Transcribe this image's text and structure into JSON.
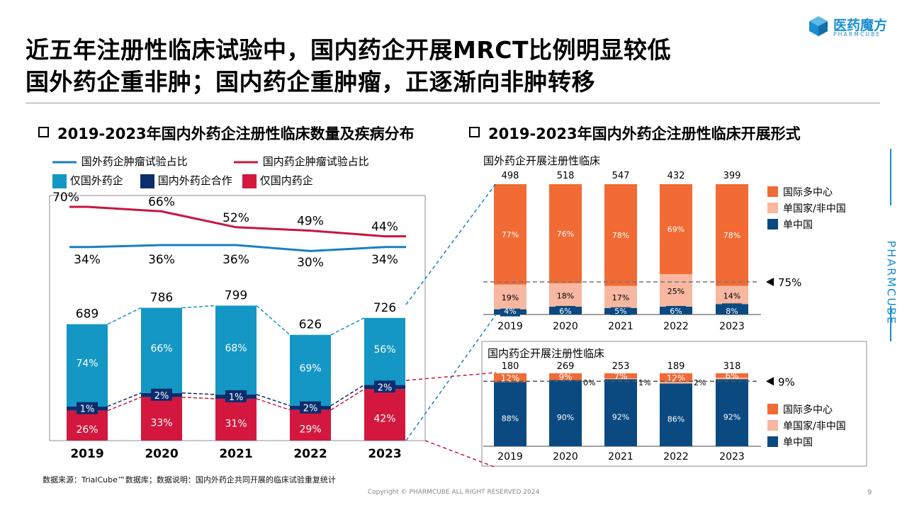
{
  "logo": {
    "cn": "医药魔方",
    "en": "PHARMCUBE"
  },
  "title": {
    "line1": "近五年注册性临床试验中，国内药企开展MRCT比例明显较低",
    "line2": "国外药企重非肿；国内药企重肿瘤，正逐渐向非肿转移"
  },
  "left_section": {
    "heading": "2019-2023年国内外药企注册性临床数量及疾病分布"
  },
  "right_section": {
    "heading": "2019-2023年国内外药企注册性临床开展形式"
  },
  "left_legend": {
    "line1": "国外药企肿瘤试验占比",
    "line2": "国内药企肿瘤试验占比",
    "bar1": "仅国外药企",
    "bar2": "国内外药企合作",
    "bar3": "仅国内药企"
  },
  "right_legend": {
    "a": "国际多中心",
    "b": "单国家/非中国",
    "c": "单中国"
  },
  "side_brand": "PHARMCUBE",
  "footnote": "数据来源：TrialCube™数据库；数据说明：国内外药企共同开展的临床试验重复统计",
  "copyright": "Copyright © PHARMCUBE ALL RIGHT RESERVED 2024",
  "page_number": "9",
  "colors": {
    "foreign": "#1497c4",
    "joint": "#0b2d6e",
    "domestic": "#d3173e",
    "mrct": "#f26a34",
    "single_nonchina": "#f7b7a0",
    "single_china": "#0b4a80",
    "line_foreign": "#1a7fc1",
    "line_domestic": "#c8163e"
  },
  "chart_data": [
    {
      "type": "bar",
      "title": "",
      "categories": [
        "2019",
        "2020",
        "2021",
        "2022",
        "2023"
      ],
      "totals": [
        "689",
        "786",
        "799",
        "626",
        "726"
      ],
      "series": [
        {
          "name": "仅国内药企",
          "values": [
            26,
            33,
            31,
            29,
            42
          ],
          "labels": [
            "26%",
            "33%",
            "31%",
            "29%",
            "42%"
          ]
        },
        {
          "name": "国内外药企合作",
          "values": [
            1,
            2,
            1,
            2,
            2
          ],
          "labels": [
            "1%",
            "2%",
            "1%",
            "2%",
            "2%"
          ]
        },
        {
          "name": "仅国外药企",
          "values": [
            74,
            66,
            68,
            69,
            56
          ],
          "labels": [
            "74%",
            "66%",
            "68%",
            "69%",
            "56%"
          ]
        }
      ],
      "lines": [
        {
          "name": "国内药企肿瘤试验占比",
          "values": [
            70,
            66,
            52,
            49,
            44
          ],
          "labels": [
            "70%",
            "66%",
            "52%",
            "49%",
            "44%"
          ]
        },
        {
          "name": "国外药企肿瘤试验占比",
          "values": [
            34,
            36,
            36,
            30,
            34
          ],
          "labels": [
            "34%",
            "36%",
            "36%",
            "30%",
            "34%"
          ]
        }
      ]
    },
    {
      "type": "bar",
      "title": "国外药企开展注册性临床",
      "categories": [
        "2019",
        "2020",
        "2021",
        "2022",
        "2023"
      ],
      "totals": [
        "498",
        "518",
        "547",
        "432",
        "399"
      ],
      "series": [
        {
          "name": "单中国",
          "values": [
            4,
            6,
            5,
            6,
            8
          ],
          "labels": [
            "4%",
            "6%",
            "5%",
            "6%",
            "8%"
          ]
        },
        {
          "name": "单国家/非中国",
          "values": [
            19,
            18,
            17,
            25,
            14
          ],
          "labels": [
            "19%",
            "18%",
            "17%",
            "25%",
            "14%"
          ]
        },
        {
          "name": "国际多中心",
          "values": [
            77,
            76,
            78,
            69,
            78
          ],
          "labels": [
            "77%",
            "76%",
            "78%",
            "69%",
            "78%"
          ]
        }
      ],
      "reference": {
        "value": 75,
        "label": "75%"
      }
    },
    {
      "type": "bar",
      "title": "国内药企开展注册性临床",
      "categories": [
        "2019",
        "2020",
        "2021",
        "2022",
        "2023"
      ],
      "totals": [
        "180",
        "269",
        "253",
        "189",
        "318"
      ],
      "series": [
        {
          "name": "单中国",
          "values": [
            88,
            90,
            92,
            86,
            92
          ],
          "labels": [
            "88%",
            "90%",
            "92%",
            "86%",
            "92%"
          ]
        },
        {
          "name": "单国家/非中国",
          "values": [
            0,
            0,
            1,
            2,
            2
          ],
          "labels": [
            "",
            "0%",
            "1%",
            "2%",
            ""
          ]
        },
        {
          "name": "国际多中心",
          "values": [
            12,
            9,
            7,
            12,
            6
          ],
          "labels": [
            "12%",
            "9%",
            "7%",
            "12%",
            "6%"
          ]
        }
      ],
      "reference": {
        "value": 9,
        "label": "9%"
      }
    }
  ]
}
